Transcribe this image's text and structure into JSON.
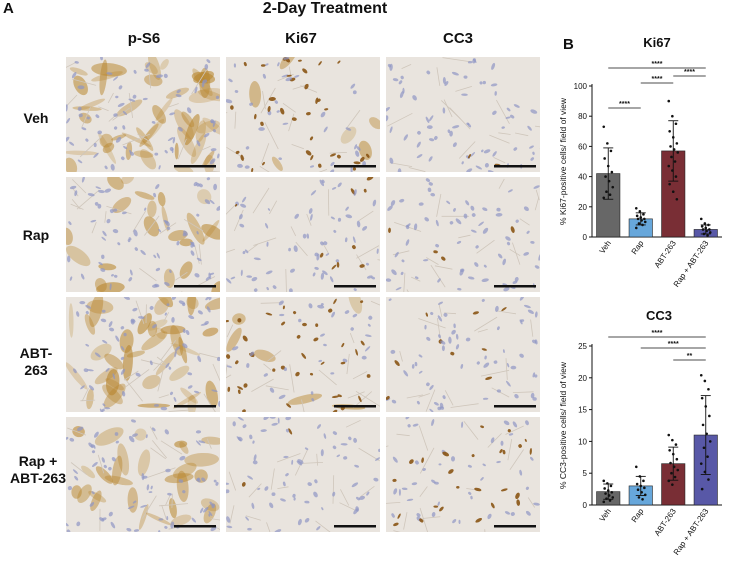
{
  "figure": {
    "panel_a_letter": "A",
    "panel_b_letter": "B",
    "title": "2-Day Treatment",
    "columns": [
      "p-S6",
      "Ki67",
      "CC3"
    ],
    "rows": [
      "Veh",
      "Rap",
      "ABT-263",
      "Rap + ABT-263"
    ]
  },
  "micrographs": {
    "brown_stain": "#b8862e",
    "nuclei_blue": "#8f95c4",
    "background": "#e9e4de",
    "scale_bar": "#111111",
    "tiles": [
      {
        "row": 0,
        "col": 0,
        "stain": "p-S6",
        "diffuse_brown": 0.85,
        "brown_nuclei": 0.0
      },
      {
        "row": 0,
        "col": 1,
        "stain": "Ki67",
        "diffuse_brown": 0.1,
        "brown_nuclei": 0.55
      },
      {
        "row": 0,
        "col": 2,
        "stain": "CC3",
        "diffuse_brown": 0.0,
        "brown_nuclei": 0.03
      },
      {
        "row": 1,
        "col": 0,
        "stain": "p-S6",
        "diffuse_brown": 0.4,
        "brown_nuclei": 0.0
      },
      {
        "row": 1,
        "col": 1,
        "stain": "Ki67",
        "diffuse_brown": 0.0,
        "brown_nuclei": 0.08
      },
      {
        "row": 1,
        "col": 2,
        "stain": "CC3",
        "diffuse_brown": 0.0,
        "brown_nuclei": 0.05
      },
      {
        "row": 2,
        "col": 0,
        "stain": "p-S6",
        "diffuse_brown": 0.7,
        "brown_nuclei": 0.0
      },
      {
        "row": 2,
        "col": 1,
        "stain": "Ki67",
        "diffuse_brown": 0.1,
        "brown_nuclei": 0.6
      },
      {
        "row": 2,
        "col": 2,
        "stain": "CC3",
        "diffuse_brown": 0.0,
        "brown_nuclei": 0.1
      },
      {
        "row": 3,
        "col": 0,
        "stain": "p-S6",
        "diffuse_brown": 0.5,
        "brown_nuclei": 0.0
      },
      {
        "row": 3,
        "col": 1,
        "stain": "Ki67",
        "diffuse_brown": 0.0,
        "brown_nuclei": 0.05
      },
      {
        "row": 3,
        "col": 2,
        "stain": "CC3",
        "diffuse_brown": 0.0,
        "brown_nuclei": 0.28
      }
    ]
  },
  "chart_data": [
    {
      "type": "bar",
      "title": "Ki67",
      "ylabel": "% Ki67-positive cells/ field of view",
      "categories": [
        "Veh",
        "Rap",
        "ABT-263",
        "Rap + ABT-263"
      ],
      "values": [
        42,
        12,
        57,
        5
      ],
      "error": [
        17,
        4,
        20,
        3
      ],
      "colors": [
        "#5a5a5a",
        "#5a9fd8",
        "#6e1c24",
        "#4a4aa0"
      ],
      "ylim": [
        0,
        100
      ],
      "yticks": [
        0,
        20,
        40,
        60,
        80,
        100
      ],
      "points": [
        [
          73,
          62,
          57,
          52,
          47,
          43,
          40,
          37,
          33,
          30,
          28,
          26
        ],
        [
          19,
          17,
          15,
          14,
          13,
          12,
          12,
          11,
          10,
          9,
          8,
          6
        ],
        [
          90,
          80,
          75,
          70,
          66,
          62,
          60,
          58,
          56,
          53,
          50,
          47,
          44,
          40,
          35,
          30,
          25
        ],
        [
          12,
          9,
          8,
          7,
          6,
          5,
          5,
          4,
          3,
          2,
          1
        ]
      ],
      "significance": [
        {
          "from": 0,
          "to": 1,
          "label": "****"
        },
        {
          "from": 0,
          "to": 3,
          "label": "****"
        },
        {
          "from": 1,
          "to": 2,
          "label": "****"
        },
        {
          "from": 2,
          "to": 3,
          "label": "****"
        }
      ]
    },
    {
      "type": "bar",
      "title": "CC3",
      "ylabel": "% CC3-positive cells/ field of view",
      "categories": [
        "Veh",
        "Rap",
        "ABT-263",
        "Rap + ABT-263"
      ],
      "values": [
        2.1,
        3.0,
        6.5,
        11.0
      ],
      "error": [
        1.2,
        1.5,
        2.6,
        6.2
      ],
      "colors": [
        "#5a5a5a",
        "#5a9fd8",
        "#6e1c24",
        "#4a4aa0"
      ],
      "ylim": [
        0,
        25
      ],
      "yticks": [
        0,
        5,
        10,
        15,
        20,
        25
      ],
      "points": [
        [
          3.8,
          3.4,
          3.0,
          2.6,
          2.3,
          2.0,
          1.8,
          1.5,
          1.2,
          1.0,
          0.7,
          0.5
        ],
        [
          6.0,
          4.5,
          3.8,
          3.3,
          3.0,
          2.7,
          2.4,
          2.0,
          1.6,
          1.2,
          0.9
        ],
        [
          11.0,
          10.2,
          9.5,
          8.6,
          8.0,
          7.2,
          6.6,
          6.0,
          5.5,
          5.0,
          4.4,
          3.8,
          3.2
        ],
        [
          20.4,
          19.5,
          18.2,
          16.8,
          15.5,
          14.0,
          12.6,
          11.2,
          10.0,
          9.0,
          7.6,
          6.5,
          5.2,
          4.0,
          2.5
        ]
      ],
      "significance": [
        {
          "from": 0,
          "to": 3,
          "label": "****"
        },
        {
          "from": 1,
          "to": 3,
          "label": "****"
        },
        {
          "from": 2,
          "to": 3,
          "label": "**"
        }
      ]
    }
  ]
}
